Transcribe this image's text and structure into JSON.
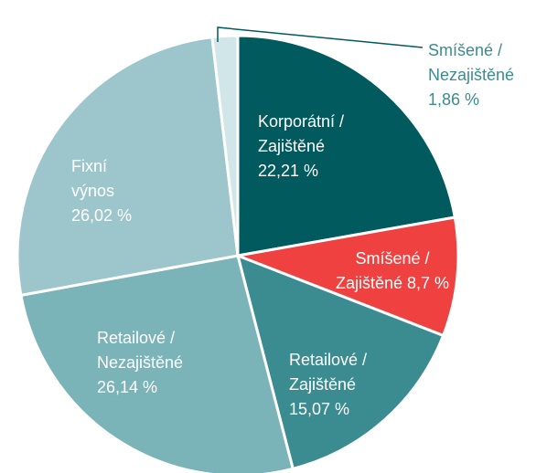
{
  "chart_data": {
    "type": "pie",
    "categories": [
      "Korporátní / Zajištěné",
      "Smíšené / Zajištěné",
      "Retailové / Zajištěné",
      "Retailové / Nezajištěné",
      "Fixní výnos",
      "Smíšené / Nezajištěné"
    ],
    "values": [
      22.21,
      8.7,
      15.07,
      26.14,
      26.02,
      1.86
    ],
    "value_labels": [
      "22,21 %",
      "8,7 %",
      "15,07 %",
      "26,14 %",
      "26,02 %",
      "1,86 %"
    ],
    "colors": [
      "#005a5e",
      "#ee4140",
      "#3a8c90",
      "#7ab3b8",
      "#9cc6cb",
      "#d0e6e9"
    ]
  }
}
